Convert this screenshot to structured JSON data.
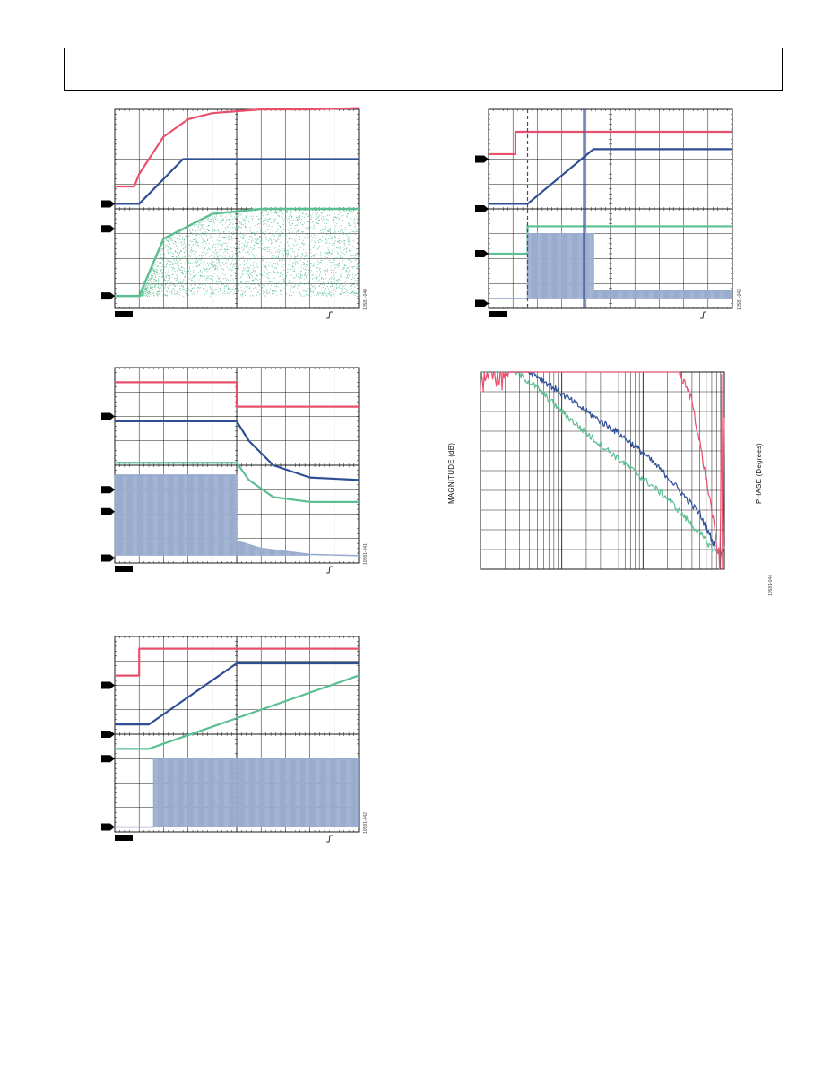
{
  "figure_ids": {
    "fig1": "10581-040",
    "fig2": "10581-041",
    "fig3": "10581-042",
    "fig4": "10581-043",
    "fig5": "10581-044"
  },
  "axis_titles": {
    "magnitude": "MAGNITUDE (dB)",
    "phase": "PHASE (Degrees)"
  },
  "colors": {
    "trace1": "#e8506e",
    "trace2": "#2f4f94",
    "trace3": "#5bbf92",
    "trace4": "#9aacce",
    "grid": "#1a1a1a",
    "marker": "#000000"
  },
  "chart_data": [
    {
      "type": "line",
      "title": "",
      "grid": true,
      "series": [
        {
          "name": "",
          "x": [
            0,
            0.8,
            1,
            2,
            3,
            4,
            6,
            8,
            10
          ],
          "y": [
            -3.1,
            -3.1,
            -2.6,
            -1.1,
            -0.4,
            -0.15,
            0,
            0,
            0.05
          ]
        },
        {
          "name": "",
          "x": [
            0,
            1,
            2.8,
            10
          ],
          "y": [
            -3.8,
            -3.8,
            -2.0,
            -2.0
          ]
        },
        {
          "name": "",
          "x": [
            0,
            1,
            2,
            4,
            6,
            10
          ],
          "y": [
            -7.5,
            -7.5,
            -5.2,
            -4.2,
            -4.0,
            -4.0
          ]
        }
      ]
    },
    {
      "type": "line",
      "title": "",
      "grid": true,
      "series": [
        {
          "name": "",
          "x": [
            0,
            5,
            5,
            10
          ],
          "y": [
            -0.6,
            -0.6,
            -1.6,
            -1.6
          ]
        },
        {
          "name": "",
          "x": [
            0,
            5,
            5.5,
            6.5,
            8,
            10
          ],
          "y": [
            -2.2,
            -2.2,
            -3.0,
            -4.0,
            -4.5,
            -4.6
          ]
        },
        {
          "name": "",
          "x": [
            0,
            5,
            5.5,
            6.5,
            8,
            10
          ],
          "y": [
            -3.9,
            -3.9,
            -4.6,
            -5.3,
            -5.5,
            -5.5
          ]
        },
        {
          "name": "",
          "x": [
            0,
            5,
            5,
            6,
            8,
            10
          ],
          "y": [
            -4.4,
            -4.4,
            -7.1,
            -7.4,
            -7.65,
            -7.7
          ]
        }
      ]
    },
    {
      "type": "line",
      "title": "",
      "grid": true,
      "series": [
        {
          "name": "",
          "x": [
            0,
            1,
            1,
            10
          ],
          "y": [
            -1.6,
            -1.6,
            -0.5,
            -0.5
          ]
        },
        {
          "name": "",
          "x": [
            0,
            1.4,
            5,
            10
          ],
          "y": [
            -3.6,
            -3.6,
            -1.1,
            -1.1
          ]
        },
        {
          "name": "",
          "x": [
            0,
            1.4,
            10
          ],
          "y": [
            -4.6,
            -4.6,
            -1.6
          ]
        },
        {
          "name": "",
          "x": [
            0,
            1.6,
            1.6,
            10
          ],
          "y": [
            -7.8,
            -7.8,
            -5.0,
            -5.0
          ]
        }
      ]
    },
    {
      "type": "line",
      "title": "",
      "grid": true,
      "series": [
        {
          "name": "",
          "x": [
            0,
            1.1,
            1.1,
            10
          ],
          "y": [
            -1.8,
            -1.8,
            -0.9,
            -0.9
          ]
        },
        {
          "name": "",
          "x": [
            0,
            1.6,
            4.3,
            10
          ],
          "y": [
            -3.8,
            -3.8,
            -1.6,
            -1.6
          ]
        },
        {
          "name": "",
          "x": [
            0,
            1.6,
            1.6,
            10
          ],
          "y": [
            -5.8,
            -5.8,
            -4.7,
            -4.7
          ]
        },
        {
          "name": "",
          "x": [
            0,
            1.6,
            1.6,
            4.3,
            4.3,
            10
          ],
          "y": [
            -7.6,
            -7.6,
            -5.0,
            -5.0,
            -7.3,
            -7.3
          ]
        }
      ]
    },
    {
      "type": "line",
      "title": "",
      "xscale": "log",
      "grid": true,
      "series": [
        {
          "name": "",
          "x": [
            1,
            2,
            5,
            10,
            20,
            50,
            100,
            200,
            500,
            700,
            900,
            1000
          ],
          "y": [
            7,
            5.9,
            4.8,
            3.9,
            3.0,
            1.9,
            0.9,
            -0.3,
            -2.2,
            -3.5,
            -4.4,
            -3.8
          ]
        },
        {
          "name": "",
          "x": [
            1,
            2,
            5,
            10,
            20,
            50,
            100,
            200,
            500,
            700,
            900,
            1000
          ],
          "y": [
            6.2,
            5.4,
            4.2,
            3.0,
            1.9,
            0.6,
            -0.4,
            -1.4,
            -3.2,
            -3.9,
            -4.3,
            -3.9
          ]
        },
        {
          "name": "",
          "x": [
            1,
            2,
            5,
            10,
            20,
            40,
            60,
            100,
            200,
            400,
            700,
            850,
            950,
            1000
          ],
          "y": [
            5.0,
            5.2,
            5.6,
            6.2,
            7.0,
            7.6,
            7.7,
            7.4,
            6.2,
            3.6,
            -2.0,
            -4.6,
            0.0,
            5.5
          ]
        }
      ]
    }
  ]
}
